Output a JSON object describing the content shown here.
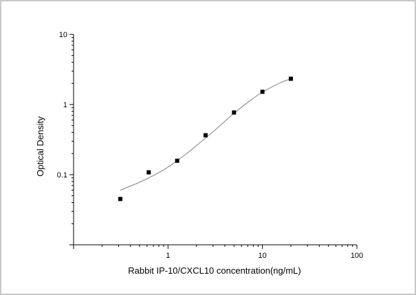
{
  "chart_data": {
    "type": "scatter",
    "title": "",
    "xlabel": "Rabbit IP-10/CXCL10 concentration(ng/mL)",
    "ylabel": "Optical Density",
    "x_scale": "log",
    "y_scale": "log",
    "xlim": [
      0.1,
      100
    ],
    "ylim": [
      0.01,
      10
    ],
    "x_tick_labels": [
      "1",
      "10",
      "100"
    ],
    "y_tick_labels": [
      "0.1",
      "1",
      "10"
    ],
    "grid": false,
    "legend": "none",
    "marker_color": "#000000",
    "curve_color": "#7f7f7f",
    "points": [
      {
        "x": 0.3125,
        "y": 0.045
      },
      {
        "x": 0.625,
        "y": 0.108
      },
      {
        "x": 1.25,
        "y": 0.158
      },
      {
        "x": 2.5,
        "y": 0.365
      },
      {
        "x": 5,
        "y": 0.77
      },
      {
        "x": 10,
        "y": 1.52
      },
      {
        "x": 20,
        "y": 2.33
      }
    ],
    "fit_curve": [
      {
        "x": 0.3125,
        "y": 0.06
      },
      {
        "x": 0.5,
        "y": 0.078
      },
      {
        "x": 0.75,
        "y": 0.102
      },
      {
        "x": 1,
        "y": 0.128
      },
      {
        "x": 1.5,
        "y": 0.19
      },
      {
        "x": 2,
        "y": 0.26
      },
      {
        "x": 3,
        "y": 0.41
      },
      {
        "x": 5,
        "y": 0.75
      },
      {
        "x": 7.5,
        "y": 1.15
      },
      {
        "x": 10,
        "y": 1.5
      },
      {
        "x": 15,
        "y": 2.0
      },
      {
        "x": 20,
        "y": 2.33
      }
    ]
  }
}
